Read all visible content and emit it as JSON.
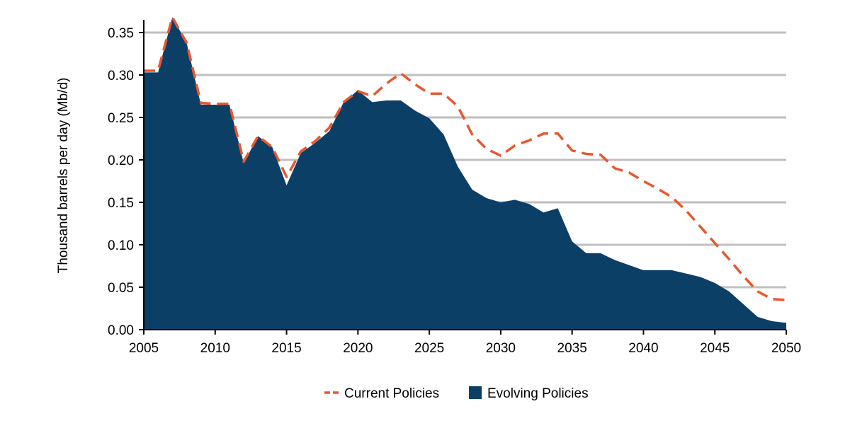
{
  "chart_data": {
    "type": "area",
    "title": "",
    "xlabel": "",
    "ylabel": "Thousand barrels per day (Mb/d)",
    "xlim": [
      2005,
      2050
    ],
    "ylim": [
      0,
      0.37
    ],
    "x_ticks": [
      2005,
      2010,
      2015,
      2020,
      2025,
      2030,
      2035,
      2040,
      2045,
      2050
    ],
    "y_ticks": [
      0,
      0.05,
      0.1,
      0.15,
      0.2,
      0.25,
      0.3,
      0.35
    ],
    "y_tick_labels": [
      "0.00",
      "0.05",
      "0.10",
      "0.15",
      "0.20",
      "0.25",
      "0.30",
      "0.35"
    ],
    "grid": "horizontal",
    "legend_position": "bottom",
    "x": [
      2005,
      2006,
      2007,
      2008,
      2009,
      2010,
      2011,
      2012,
      2013,
      2014,
      2015,
      2016,
      2017,
      2018,
      2019,
      2020,
      2021,
      2022,
      2023,
      2024,
      2025,
      2026,
      2027,
      2028,
      2029,
      2030,
      2031,
      2032,
      2033,
      2034,
      2035,
      2036,
      2037,
      2038,
      2039,
      2040,
      2041,
      2042,
      2043,
      2044,
      2045,
      2046,
      2047,
      2048,
      2049,
      2050
    ],
    "series": [
      {
        "name": "Current Policies",
        "style": "dashed-line",
        "color": "#E8572E",
        "values": [
          0.305,
          0.305,
          0.368,
          0.338,
          0.267,
          0.266,
          0.266,
          0.198,
          0.228,
          0.215,
          0.18,
          0.21,
          0.222,
          0.238,
          0.268,
          0.281,
          0.275,
          0.29,
          0.302,
          0.289,
          0.278,
          0.278,
          0.263,
          0.23,
          0.213,
          0.205,
          0.217,
          0.223,
          0.231,
          0.231,
          0.211,
          0.207,
          0.206,
          0.19,
          0.185,
          0.175,
          0.166,
          0.156,
          0.14,
          0.121,
          0.102,
          0.083,
          0.063,
          0.045,
          0.036,
          0.035
        ]
      },
      {
        "name": "Evolving Policies",
        "style": "area",
        "color": "#0B3F66",
        "values": [
          0.303,
          0.303,
          0.368,
          0.338,
          0.265,
          0.265,
          0.265,
          0.196,
          0.228,
          0.215,
          0.17,
          0.208,
          0.22,
          0.234,
          0.268,
          0.282,
          0.268,
          0.27,
          0.27,
          0.258,
          0.249,
          0.23,
          0.192,
          0.165,
          0.155,
          0.15,
          0.153,
          0.148,
          0.138,
          0.143,
          0.104,
          0.09,
          0.09,
          0.082,
          0.076,
          0.07,
          0.07,
          0.07,
          0.066,
          0.062,
          0.055,
          0.045,
          0.03,
          0.015,
          0.01,
          0.008
        ]
      }
    ]
  }
}
